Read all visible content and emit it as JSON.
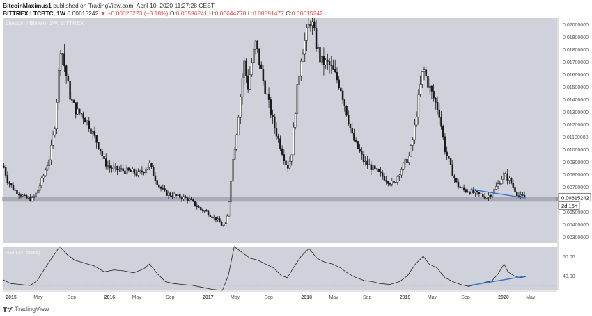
{
  "header": {
    "author": "BitcoinMaximus1",
    "published_text": "published on TradingView.com, April 10, 2020 11:27:28 CEST",
    "symbol": "BITTREX:LTCBTC, 1W",
    "price": "0.00615242",
    "change": "▼ −0.00020223 (−3.18%)",
    "ohlc": [
      {
        "label": "O:",
        "value": "0.00596241"
      },
      {
        "label": "H:",
        "value": "0.00644778"
      },
      {
        "label": "L:",
        "value": "0.00591477"
      },
      {
        "label": "C:",
        "value": "0.00615242"
      }
    ]
  },
  "footer": {
    "brand": "TradingView"
  },
  "chart_data": [
    {
      "type": "candlestick",
      "title": "Litecoin / Bitcoin, 1W, BITTREX",
      "yticks": [
        "0.02000000",
        "0.01900000",
        "0.01800000",
        "0.01700000",
        "0.01600000",
        "0.01500000",
        "0.01400000",
        "0.01300000",
        "0.01200000",
        "0.01100000",
        "0.01000000",
        "0.00900000",
        "0.00800000",
        "0.00700000",
        "0.00500000",
        "0.00400000",
        "0.00300000"
      ],
      "yrange": [
        0.0025,
        0.0205
      ],
      "current_price": "0.00615242",
      "countdown": "2d 15h",
      "support_band": [
        0.00585,
        0.0062
      ],
      "x_labels": [
        {
          "label": "2015",
          "t": 2015.0
        },
        {
          "label": "May",
          "t": 2015.33
        },
        {
          "label": "Sep",
          "t": 2015.67
        },
        {
          "label": "2016",
          "t": 2016.0
        },
        {
          "label": "May",
          "t": 2016.33
        },
        {
          "label": "Sep",
          "t": 2016.67
        },
        {
          "label": "2017",
          "t": 2017.0
        },
        {
          "label": "May",
          "t": 2017.33
        },
        {
          "label": "Sep",
          "t": 2017.67
        },
        {
          "label": "2018",
          "t": 2018.0
        },
        {
          "label": "May",
          "t": 2018.33
        },
        {
          "label": "Sep",
          "t": 2018.67
        },
        {
          "label": "2019",
          "t": 2019.0
        },
        {
          "label": "May",
          "t": 2019.33
        },
        {
          "label": "Sep",
          "t": 2019.67
        },
        {
          "label": "2020",
          "t": 2020.0
        },
        {
          "label": "May",
          "t": 2020.33
        }
      ],
      "x_range": [
        2014.97,
        2020.6
      ],
      "price_path": [
        [
          2014.97,
          0.0088
        ],
        [
          2015.02,
          0.0075
        ],
        [
          2015.08,
          0.0068
        ],
        [
          2015.15,
          0.0064
        ],
        [
          2015.2,
          0.0061
        ],
        [
          2015.27,
          0.006
        ],
        [
          2015.32,
          0.0066
        ],
        [
          2015.38,
          0.0078
        ],
        [
          2015.45,
          0.0095
        ],
        [
          2015.5,
          0.012
        ],
        [
          2015.56,
          0.0185
        ],
        [
          2015.6,
          0.0165
        ],
        [
          2015.66,
          0.014
        ],
        [
          2015.72,
          0.013
        ],
        [
          2015.78,
          0.0128
        ],
        [
          2015.84,
          0.012
        ],
        [
          2015.9,
          0.011
        ],
        [
          2015.96,
          0.01
        ],
        [
          2016.0,
          0.009
        ],
        [
          2016.06,
          0.0085
        ],
        [
          2016.12,
          0.0084
        ],
        [
          2016.2,
          0.0083
        ],
        [
          2016.28,
          0.0082
        ],
        [
          2016.34,
          0.008
        ],
        [
          2016.4,
          0.0083
        ],
        [
          2016.46,
          0.0088
        ],
        [
          2016.5,
          0.008
        ],
        [
          2016.56,
          0.007
        ],
        [
          2016.62,
          0.0065
        ],
        [
          2016.7,
          0.0063
        ],
        [
          2016.78,
          0.0062
        ],
        [
          2016.86,
          0.006
        ],
        [
          2016.92,
          0.0056
        ],
        [
          2016.98,
          0.0052
        ],
        [
          2017.04,
          0.005
        ],
        [
          2017.1,
          0.0046
        ],
        [
          2017.16,
          0.0043
        ],
        [
          2017.2,
          0.0038
        ],
        [
          2017.24,
          0.004
        ],
        [
          2017.27,
          0.006
        ],
        [
          2017.3,
          0.0088
        ],
        [
          2017.34,
          0.011
        ],
        [
          2017.38,
          0.014
        ],
        [
          2017.42,
          0.017
        ],
        [
          2017.46,
          0.015
        ],
        [
          2017.5,
          0.017
        ],
        [
          2017.54,
          0.0185
        ],
        [
          2017.6,
          0.016
        ],
        [
          2017.66,
          0.014
        ],
        [
          2017.72,
          0.012
        ],
        [
          2017.8,
          0.01
        ],
        [
          2017.86,
          0.0085
        ],
        [
          2017.9,
          0.0095
        ],
        [
          2017.95,
          0.014
        ],
        [
          2018.0,
          0.0175
        ],
        [
          2018.05,
          0.019
        ],
        [
          2018.1,
          0.0205
        ],
        [
          2018.15,
          0.0185
        ],
        [
          2018.2,
          0.017
        ],
        [
          2018.28,
          0.0168
        ],
        [
          2018.34,
          0.016
        ],
        [
          2018.4,
          0.015
        ],
        [
          2018.46,
          0.013
        ],
        [
          2018.52,
          0.011
        ],
        [
          2018.58,
          0.01
        ],
        [
          2018.64,
          0.009
        ],
        [
          2018.72,
          0.0085
        ],
        [
          2018.8,
          0.008
        ],
        [
          2018.88,
          0.0075
        ],
        [
          2018.94,
          0.0072
        ],
        [
          2019.0,
          0.0082
        ],
        [
          2019.06,
          0.009
        ],
        [
          2019.1,
          0.0095
        ],
        [
          2019.14,
          0.011
        ],
        [
          2019.2,
          0.0145
        ],
        [
          2019.24,
          0.0165
        ],
        [
          2019.3,
          0.015
        ],
        [
          2019.35,
          0.014
        ],
        [
          2019.4,
          0.013
        ],
        [
          2019.46,
          0.01
        ],
        [
          2019.52,
          0.0085
        ],
        [
          2019.58,
          0.0072
        ],
        [
          2019.64,
          0.0068
        ],
        [
          2019.72,
          0.0066
        ],
        [
          2019.8,
          0.0064
        ],
        [
          2019.88,
          0.0062
        ],
        [
          2019.94,
          0.0065
        ],
        [
          2020.0,
          0.0072
        ],
        [
          2020.06,
          0.008
        ],
        [
          2020.12,
          0.0075
        ],
        [
          2020.18,
          0.0066
        ],
        [
          2020.22,
          0.0062
        ],
        [
          2020.28,
          0.0062
        ]
      ],
      "trendline": [
        [
          2019.72,
          0.0068
        ],
        [
          2020.28,
          0.0061
        ]
      ]
    },
    {
      "type": "line",
      "title": "RSI (14, close)",
      "yticks": [
        "60.00",
        "40.00"
      ],
      "yrange": [
        25,
        70
      ],
      "series_path": [
        [
          2014.97,
          36
        ],
        [
          2015.05,
          32
        ],
        [
          2015.15,
          31
        ],
        [
          2015.25,
          30
        ],
        [
          2015.32,
          35
        ],
        [
          2015.4,
          48
        ],
        [
          2015.48,
          60
        ],
        [
          2015.55,
          72
        ],
        [
          2015.62,
          62
        ],
        [
          2015.7,
          56
        ],
        [
          2015.8,
          53
        ],
        [
          2015.9,
          50
        ],
        [
          2016.0,
          44
        ],
        [
          2016.1,
          46
        ],
        [
          2016.2,
          45
        ],
        [
          2016.3,
          43
        ],
        [
          2016.4,
          47
        ],
        [
          2016.46,
          52
        ],
        [
          2016.54,
          42
        ],
        [
          2016.62,
          34
        ],
        [
          2016.7,
          32
        ],
        [
          2016.8,
          31
        ],
        [
          2016.9,
          30
        ],
        [
          2017.0,
          28
        ],
        [
          2017.1,
          26
        ],
        [
          2017.2,
          24
        ],
        [
          2017.26,
          40
        ],
        [
          2017.32,
          70
        ],
        [
          2017.4,
          64
        ],
        [
          2017.48,
          58
        ],
        [
          2017.56,
          56
        ],
        [
          2017.64,
          52
        ],
        [
          2017.72,
          48
        ],
        [
          2017.8,
          40
        ],
        [
          2017.86,
          38
        ],
        [
          2017.92,
          48
        ],
        [
          2018.0,
          60
        ],
        [
          2018.08,
          68
        ],
        [
          2018.16,
          58
        ],
        [
          2018.24,
          54
        ],
        [
          2018.32,
          52
        ],
        [
          2018.4,
          48
        ],
        [
          2018.48,
          42
        ],
        [
          2018.56,
          38
        ],
        [
          2018.64,
          35
        ],
        [
          2018.72,
          34
        ],
        [
          2018.8,
          32
        ],
        [
          2018.9,
          31
        ],
        [
          2019.0,
          34
        ],
        [
          2019.08,
          40
        ],
        [
          2019.16,
          52
        ],
        [
          2019.24,
          60
        ],
        [
          2019.3,
          52
        ],
        [
          2019.38,
          48
        ],
        [
          2019.46,
          38
        ],
        [
          2019.54,
          34
        ],
        [
          2019.62,
          31
        ],
        [
          2019.7,
          29
        ],
        [
          2019.78,
          31
        ],
        [
          2019.86,
          33
        ],
        [
          2019.94,
          35
        ],
        [
          2020.0,
          42
        ],
        [
          2020.06,
          52
        ],
        [
          2020.1,
          44
        ],
        [
          2020.16,
          40
        ],
        [
          2020.22,
          38
        ],
        [
          2020.28,
          39
        ]
      ],
      "trendline": [
        [
          2019.68,
          29.5
        ],
        [
          2020.28,
          39.5
        ]
      ]
    }
  ]
}
